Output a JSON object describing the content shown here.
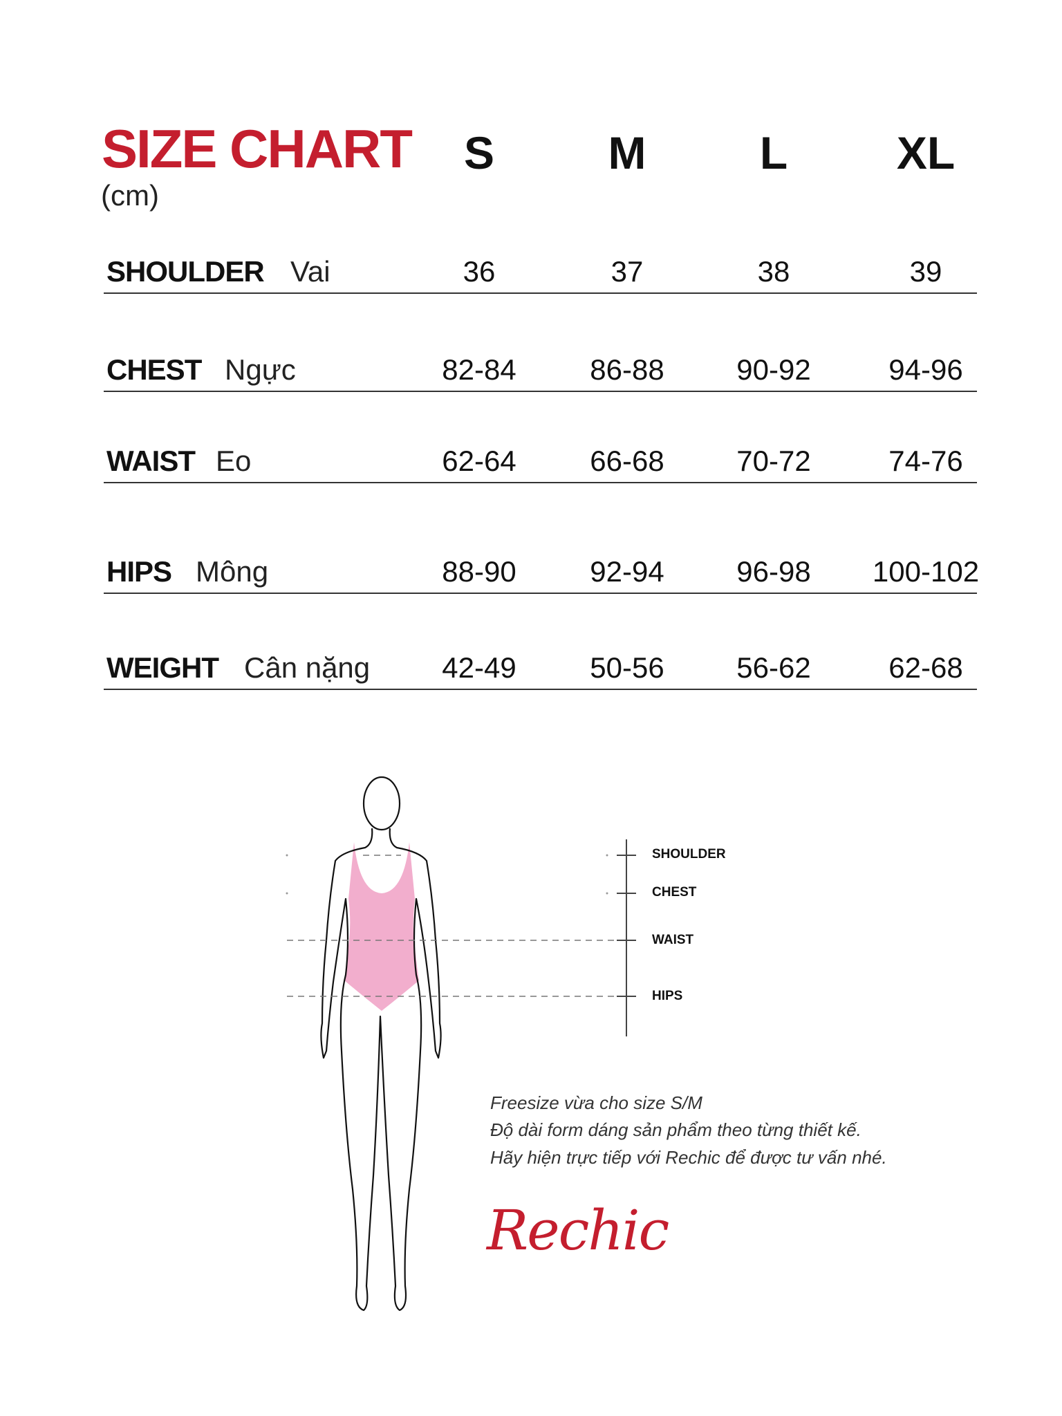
{
  "header": {
    "title": "SIZE CHART",
    "unit": "(cm)"
  },
  "sizes": [
    "S",
    "M",
    "L",
    "XL"
  ],
  "rows": [
    {
      "label": "SHOULDER",
      "sub": "Vai",
      "values": [
        "36",
        "37",
        "38",
        "39"
      ]
    },
    {
      "label": "CHEST",
      "sub": "Ngực",
      "values": [
        "82-84",
        "86-88",
        "90-92",
        "94-96"
      ]
    },
    {
      "label": "WAIST",
      "sub": "Eo",
      "values": [
        "62-64",
        "66-68",
        "70-72",
        "74-76"
      ]
    },
    {
      "label": "HIPS",
      "sub": "Mông",
      "values": [
        "88-90",
        "92-94",
        "96-98",
        "100-102"
      ]
    },
    {
      "label": "WEIGHT",
      "sub": "Cân nặng",
      "values": [
        "42-49",
        "50-56",
        "56-62",
        "62-68"
      ]
    }
  ],
  "diagram": {
    "labels": [
      "SHOULDER",
      "CHEST",
      "WAIST",
      "HIPS"
    ]
  },
  "notes": [
    "Freesize vừa cho size S/M",
    "Độ dài form dáng sản phẩm theo từng thiết kế.",
    "Hãy hiện trực tiếp với Rechic để được tư vấn nhé."
  ],
  "brand": {
    "logo": "Rechic"
  },
  "colors": {
    "accent": "#c41e2e",
    "swimsuit": "#f2aecd",
    "text": "#111111"
  }
}
